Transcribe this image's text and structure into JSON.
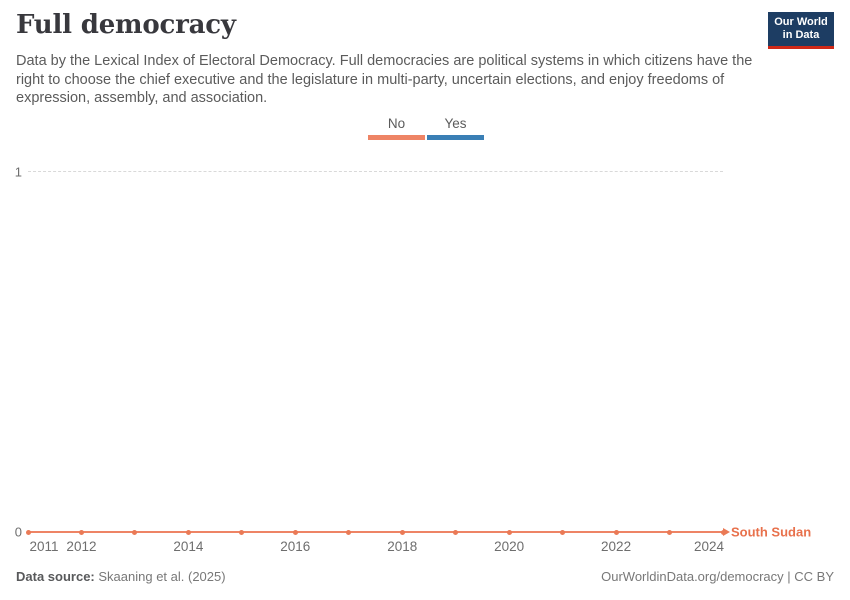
{
  "header": {
    "title": "Full democracy",
    "subtitle": "Data by the Lexical Index of Electoral Democracy. Full democracies are political systems in which citizens have the right to choose the chief executive and the legislature in multi-party, uncertain elections, and enjoy freedoms of expression, assembly, and association.",
    "logo": {
      "line1": "Our World",
      "line2": "in Data",
      "bg_color": "#1d3d63",
      "accent_color": "#cf2817"
    }
  },
  "legend": {
    "items": [
      {
        "label": "No",
        "color": "#ee8465"
      },
      {
        "label": "Yes",
        "color": "#3a7fb5"
      }
    ]
  },
  "chart_data": {
    "type": "line",
    "title": "Full democracy",
    "entity": "South Sudan",
    "x": [
      2011,
      2012,
      2013,
      2014,
      2015,
      2016,
      2017,
      2018,
      2019,
      2020,
      2021,
      2022,
      2023,
      2024
    ],
    "series": [
      {
        "name": "South Sudan",
        "values": [
          0,
          0,
          0,
          0,
          0,
          0,
          0,
          0,
          0,
          0,
          0,
          0,
          0,
          0
        ],
        "color": "#ee8465"
      }
    ],
    "x_tick_labels": [
      "2011",
      "2012",
      "2014",
      "2016",
      "2018",
      "2020",
      "2022",
      "2024"
    ],
    "y_ticks": [
      0,
      1
    ],
    "ylim": [
      0,
      1
    ],
    "value_meaning": {
      "0": "No",
      "1": "Yes"
    },
    "grid": "horizontal dashed gridline at y=1 only",
    "legend_position": "top-center",
    "marker": "point markers at every year, arrowhead at series end"
  },
  "footer": {
    "source_label": "Data source:",
    "source_value": "Skaaning et al. (2025)",
    "link_text": "OurWorldinData.org/democracy | CC BY"
  }
}
